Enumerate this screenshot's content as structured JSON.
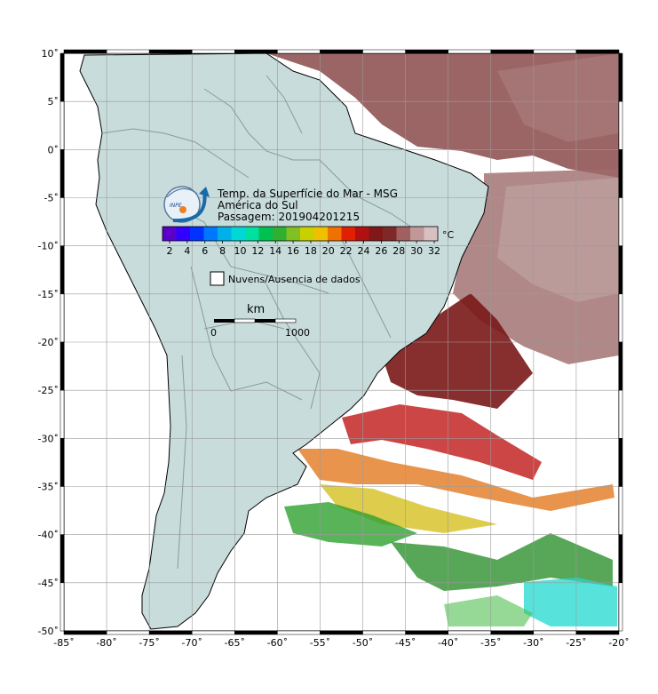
{
  "title": {
    "line1": "Temp. da Superfície do Mar - MSG",
    "line2": "América do Sul",
    "line3": "Passagem: 201904201215"
  },
  "logo": {
    "text": "INPE"
  },
  "colorbar": {
    "unit": "°C",
    "ticks": [
      "2",
      "4",
      "6",
      "8",
      "10",
      "12",
      "14",
      "16",
      "18",
      "20",
      "22",
      "24",
      "26",
      "28",
      "30",
      "32"
    ],
    "colors": [
      "#5a00c8",
      "#3300ff",
      "#0033ff",
      "#0077ff",
      "#00b0e8",
      "#00d8d8",
      "#00e0a0",
      "#00c050",
      "#30b030",
      "#80c020",
      "#c8d000",
      "#f0c000",
      "#f07000",
      "#e02000",
      "#b01010",
      "#801818",
      "#802828",
      "#a06060",
      "#c09898",
      "#d8c0c0"
    ]
  },
  "legend": {
    "no_data_label": "Nuvens/Ausencia de dados"
  },
  "scale": {
    "unit": "km",
    "start": "0",
    "end": "1000"
  },
  "axes": {
    "x_ticks": [
      "-85˚",
      "-80˚",
      "-75˚",
      "-70˚",
      "-65˚",
      "-60˚",
      "-55˚",
      "-50˚",
      "-45˚",
      "-40˚",
      "-35˚",
      "-30˚",
      "-25˚",
      "-20˚"
    ],
    "y_ticks": [
      "10˚",
      "5˚",
      "0˚",
      "-5˚",
      "-10˚",
      "-15˚",
      "-20˚",
      "-25˚",
      "-30˚",
      "-35˚",
      "-40˚",
      "-45˚",
      "-50˚"
    ]
  },
  "colors": {
    "land": "#c8dcdc",
    "border": "#8a9a9a",
    "coast": "#000000",
    "grid": "#9a9a9a"
  }
}
